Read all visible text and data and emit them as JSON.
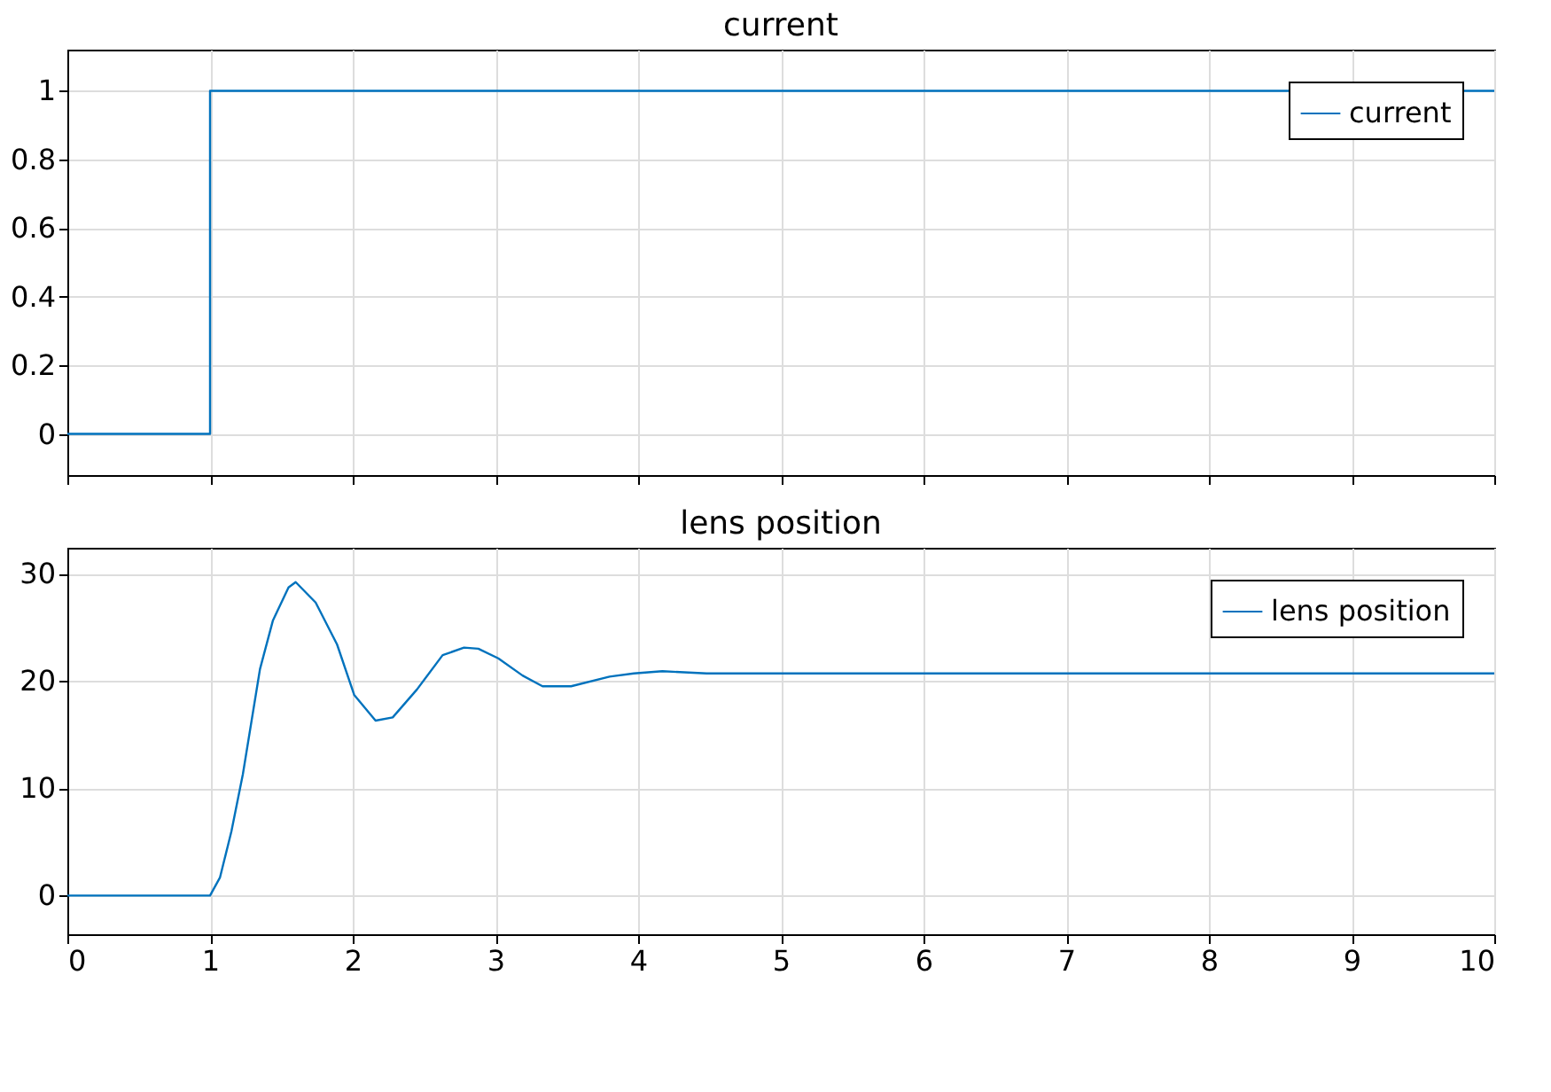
{
  "chart_data": [
    {
      "type": "step",
      "title": "current",
      "x": [
        0,
        1,
        10
      ],
      "xlim": [
        0,
        10
      ],
      "xticks": [
        0,
        1,
        2,
        3,
        4,
        5,
        6,
        7,
        8,
        9,
        10
      ],
      "ylim": [
        -0.12,
        1.12
      ],
      "yticks": [
        0,
        0.2,
        0.4,
        0.6,
        0.8,
        1
      ],
      "tick_labels": "y",
      "grid": true,
      "legend": "top right",
      "series": [
        {
          "name": "current",
          "color": "#0072bd",
          "values": [
            0,
            1,
            1
          ]
        }
      ]
    },
    {
      "type": "line",
      "title": "lens position",
      "x": [
        0,
        1,
        1.07,
        1.15,
        1.23,
        1.35,
        1.44,
        1.55,
        1.6,
        1.74,
        1.89,
        2.01,
        2.16,
        2.28,
        2.45,
        2.63,
        2.78,
        2.88,
        3.02,
        3.19,
        3.33,
        3.53,
        3.8,
        3.97,
        4.17,
        4.48,
        10
      ],
      "xlim": [
        0,
        10
      ],
      "xticks": [
        0,
        1,
        2,
        3,
        4,
        5,
        6,
        7,
        8,
        9,
        10
      ],
      "ylim": [
        -3.6,
        32.4
      ],
      "yticks": [
        0,
        10,
        20,
        30
      ],
      "grid": true,
      "legend": "top right",
      "series": [
        {
          "name": "lens position",
          "color": "#0072bd",
          "values": [
            0,
            0,
            1.7,
            6.0,
            11.3,
            21.1,
            25.6,
            28.7,
            29.2,
            27.3,
            23.4,
            18.7,
            16.3,
            16.6,
            19.2,
            22.4,
            23.1,
            23.0,
            22.1,
            20.5,
            19.5,
            19.5,
            20.4,
            20.7,
            20.9,
            20.7,
            20.7
          ]
        }
      ]
    }
  ]
}
